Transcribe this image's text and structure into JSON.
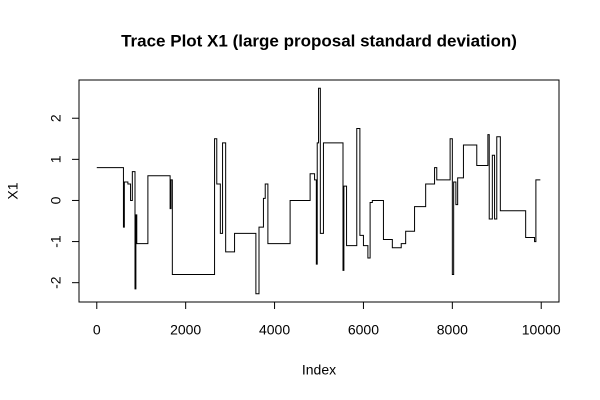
{
  "chart_data": {
    "type": "line",
    "title": "Trace Plot X1 (large proposal standard deviation)",
    "x_label": "Index",
    "y_label": "X1",
    "color": "#000000",
    "x": [
      0,
      600,
      600,
      620,
      620,
      700,
      700,
      760,
      760,
      800,
      800,
      860,
      860,
      880,
      880,
      900,
      900,
      1150,
      1150,
      1650,
      1650,
      1670,
      1670,
      1700,
      1700,
      2650,
      2650,
      2700,
      2700,
      2780,
      2780,
      2830,
      2830,
      2900,
      2900,
      3100,
      3100,
      3580,
      3580,
      3650,
      3650,
      3750,
      3750,
      3790,
      3790,
      3850,
      3850,
      4350,
      4350,
      4800,
      4800,
      4900,
      4900,
      4940,
      4940,
      4960,
      4960,
      4990,
      4990,
      5030,
      5030,
      5100,
      5100,
      5540,
      5540,
      5560,
      5560,
      5620,
      5620,
      5850,
      5850,
      5920,
      5920,
      6000,
      6000,
      6100,
      6100,
      6150,
      6150,
      6200,
      6200,
      6450,
      6450,
      6650,
      6650,
      6850,
      6850,
      6950,
      6950,
      7150,
      7150,
      7400,
      7400,
      7600,
      7600,
      7650,
      7650,
      7950,
      7950,
      8000,
      8000,
      8030,
      8030,
      8080,
      8080,
      8120,
      8120,
      8250,
      8250,
      8550,
      8550,
      8800,
      8800,
      8830,
      8830,
      8900,
      8900,
      8950,
      8950,
      9000,
      9000,
      9080,
      9080,
      9650,
      9650,
      9850,
      9850,
      9880,
      9880,
      9980
    ],
    "values": [
      0.8,
      0.8,
      -0.65,
      -0.65,
      0.45,
      0.45,
      0.4,
      0.4,
      0,
      0,
      0.7,
      0.7,
      -2.15,
      -2.15,
      -0.35,
      -0.35,
      -1.05,
      -1.05,
      0.6,
      0.6,
      -0.2,
      -0.2,
      0.5,
      0.5,
      -1.8,
      -1.8,
      1.5,
      1.5,
      0.4,
      0.4,
      -0.8,
      -0.8,
      1.4,
      1.4,
      -1.25,
      -1.25,
      -0.8,
      -0.8,
      -2.27,
      -2.27,
      -0.65,
      -0.65,
      0.05,
      0.05,
      0.4,
      0.4,
      -1.05,
      -1.05,
      0,
      0,
      0.65,
      0.65,
      0.5,
      0.5,
      -1.55,
      -1.55,
      1.4,
      1.4,
      2.73,
      2.73,
      -0.8,
      -0.8,
      1.4,
      1.4,
      -1.7,
      -1.7,
      0.35,
      0.35,
      -1.1,
      -1.1,
      1.75,
      1.75,
      -0.85,
      -0.85,
      -1.1,
      -1.1,
      -1.4,
      -1.4,
      -0.05,
      -0.05,
      0,
      0,
      -0.95,
      -0.95,
      -1.15,
      -1.15,
      -1.05,
      -1.05,
      -0.75,
      -0.75,
      -0.15,
      -0.15,
      0.4,
      0.4,
      0.8,
      0.8,
      0.5,
      0.5,
      1.5,
      1.5,
      -1.8,
      -1.8,
      0.45,
      0.45,
      -0.1,
      -0.1,
      0.55,
      0.55,
      1.35,
      1.35,
      0.85,
      0.85,
      1.6,
      1.6,
      -0.45,
      -0.45,
      1.1,
      1.1,
      -0.45,
      -0.45,
      1.55,
      1.55,
      -0.25,
      -0.25,
      -0.9,
      -0.9,
      -1.0,
      -1.0,
      0.5,
      0.5
    ],
    "xlim": [
      -400,
      10400
    ],
    "ylim": [
      -2.47,
      2.93
    ],
    "xticks": [
      0,
      2000,
      4000,
      6000,
      8000,
      10000
    ],
    "yticks": [
      -2,
      -1,
      0,
      1,
      2
    ],
    "grid": false
  }
}
